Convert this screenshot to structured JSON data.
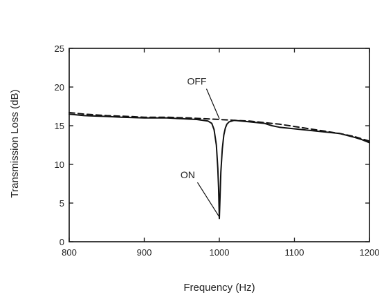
{
  "chart_data": {
    "type": "line",
    "title": "",
    "xlabel": "Frequency (Hz)",
    "ylabel": "Transmission Loss (dB)",
    "xlim": [
      800,
      1200
    ],
    "ylim": [
      0,
      25
    ],
    "xticks": [
      800,
      900,
      1000,
      1100,
      1200
    ],
    "yticks": [
      0,
      5,
      10,
      15,
      20,
      25
    ],
    "grid": false,
    "legend": "none",
    "series": [
      {
        "name": "ON",
        "style": "solid",
        "color": "#111111",
        "x": [
          800,
          820,
          850,
          870,
          900,
          930,
          950,
          970,
          985,
          990,
          993,
          996,
          998,
          999,
          1000,
          1001,
          1002,
          1004,
          1006,
          1008,
          1010,
          1013,
          1020,
          1040,
          1060,
          1070,
          1080,
          1100,
          1120,
          1140,
          1160,
          1180,
          1190,
          1200
        ],
        "y": [
          16.5,
          16.3,
          16.2,
          16.1,
          16.0,
          16.0,
          15.9,
          15.8,
          15.6,
          15.3,
          14.5,
          12.5,
          9.5,
          7.0,
          3.0,
          6.0,
          9.0,
          12.0,
          13.8,
          14.7,
          15.2,
          15.5,
          15.7,
          15.5,
          15.3,
          15.0,
          14.8,
          14.6,
          14.4,
          14.2,
          14.0,
          13.5,
          13.2,
          12.8
        ]
      },
      {
        "name": "OFF",
        "style": "dashed",
        "color": "#111111",
        "x": [
          800,
          820,
          850,
          880,
          900,
          930,
          960,
          980,
          1000,
          1020,
          1040,
          1060,
          1080,
          1100,
          1120,
          1140,
          1160,
          1180,
          1200
        ],
        "y": [
          16.7,
          16.5,
          16.3,
          16.2,
          16.1,
          16.1,
          16.0,
          15.9,
          15.8,
          15.7,
          15.6,
          15.4,
          15.2,
          14.9,
          14.6,
          14.3,
          14.0,
          13.6,
          13.0
        ]
      }
    ],
    "annotations": [
      {
        "text": "OFF",
        "label_x": 970,
        "label_y": 20.3,
        "point_x": 1000,
        "point_y": 15.9
      },
      {
        "text": "ON",
        "label_x": 958,
        "label_y": 8.2,
        "point_x": 1000,
        "point_y": 3.2
      }
    ]
  }
}
